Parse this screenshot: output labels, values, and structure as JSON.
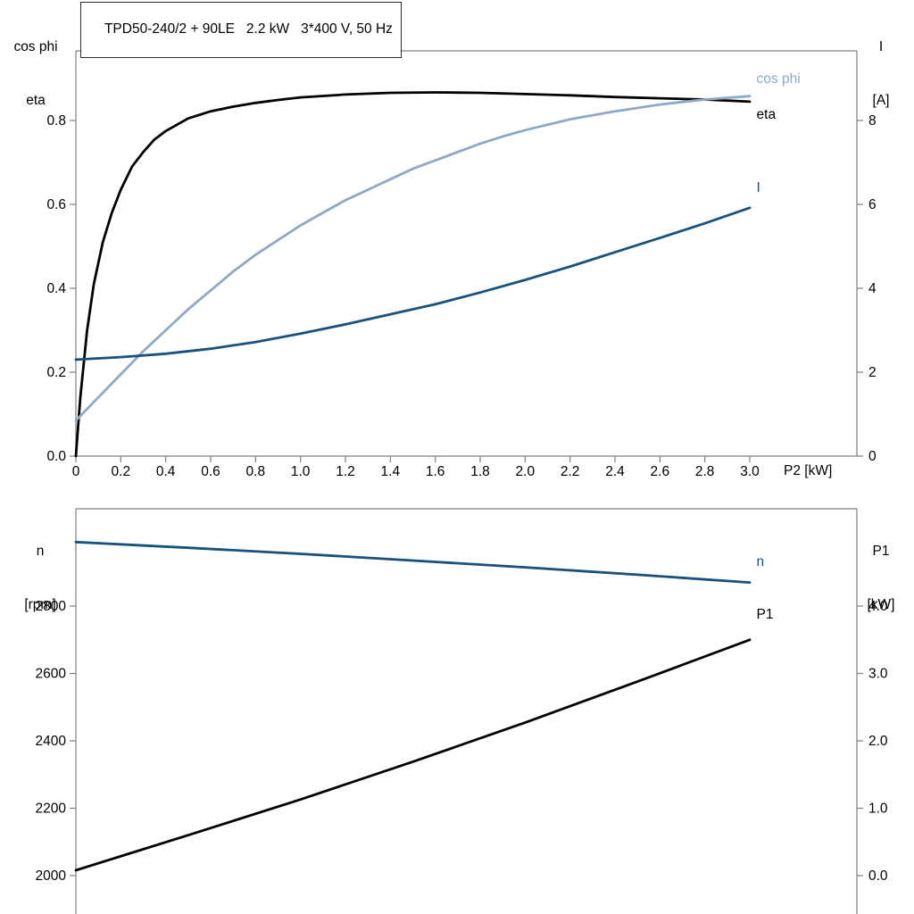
{
  "colors": {
    "axis_frame": "#7f7f7f",
    "text": "#000000",
    "black_curve": "#000000",
    "light_blue_curve": "#8ea9c6",
    "dark_blue_curve": "#17517e"
  },
  "chart_data": [
    {
      "type": "line",
      "title": "TPD50-240/2 + 90LE   2.2 kW   3*400 V, 50 Hz",
      "grid": false,
      "legend_position": "curve-end-labels",
      "x_axis": {
        "label": "P2 [kW]",
        "min": 0,
        "max": 3,
        "ticks": [
          {
            "v": 0,
            "label": "0"
          },
          {
            "v": 0.2,
            "label": "0.2"
          },
          {
            "v": 0.4,
            "label": "0.4"
          },
          {
            "v": 0.6,
            "label": "0.6"
          },
          {
            "v": 0.8,
            "label": "0.8"
          },
          {
            "v": 1.0,
            "label": "1.0"
          },
          {
            "v": 1.2,
            "label": "1.2"
          },
          {
            "v": 1.4,
            "label": "1.4"
          },
          {
            "v": 1.6,
            "label": "1.6"
          },
          {
            "v": 1.8,
            "label": "1.8"
          },
          {
            "v": 2.0,
            "label": "2.0"
          },
          {
            "v": 2.2,
            "label": "2.2"
          },
          {
            "v": 2.4,
            "label": "2.4"
          },
          {
            "v": 2.6,
            "label": "2.6"
          },
          {
            "v": 2.8,
            "label": "2.8"
          },
          {
            "v": 3.0,
            "label": "3.0"
          }
        ]
      },
      "y_left": {
        "title_lines": [
          "cos phi",
          "eta"
        ],
        "min": 0,
        "max": 0.8,
        "ticks": [
          {
            "v": 0.0,
            "label": "0.0"
          },
          {
            "v": 0.2,
            "label": "0.2"
          },
          {
            "v": 0.4,
            "label": "0.4"
          },
          {
            "v": 0.6,
            "label": "0.6"
          },
          {
            "v": 0.8,
            "label": "0.8"
          }
        ]
      },
      "y_right": {
        "title_lines": [
          "I",
          "[A]"
        ],
        "min": 0,
        "max": 8,
        "ticks": [
          {
            "v": 0,
            "label": "0"
          },
          {
            "v": 2,
            "label": "2"
          },
          {
            "v": 4,
            "label": "4"
          },
          {
            "v": 6,
            "label": "6"
          },
          {
            "v": 8,
            "label": "8"
          }
        ]
      },
      "series": [
        {
          "id": "eta",
          "label": "eta",
          "axis": "left",
          "color": "#000000",
          "label_x": 3.03,
          "label_y": 0.815,
          "x": [
            0,
            0.02,
            0.05,
            0.08,
            0.12,
            0.16,
            0.2,
            0.25,
            0.3,
            0.35,
            0.4,
            0.5,
            0.6,
            0.7,
            0.8,
            0.9,
            1.0,
            1.2,
            1.4,
            1.6,
            1.8,
            2.0,
            2.2,
            2.4,
            2.6,
            2.8,
            3.0
          ],
          "y": [
            0,
            0.14,
            0.3,
            0.41,
            0.51,
            0.58,
            0.635,
            0.69,
            0.725,
            0.755,
            0.775,
            0.805,
            0.822,
            0.833,
            0.842,
            0.849,
            0.855,
            0.862,
            0.866,
            0.867,
            0.866,
            0.863,
            0.86,
            0.856,
            0.853,
            0.85,
            0.845
          ]
        },
        {
          "id": "cos-phi",
          "label": "cos phi",
          "axis": "left",
          "color": "#8ea9c6",
          "label_x": 3.03,
          "label_y": 0.9,
          "x": [
            0,
            0.1,
            0.2,
            0.3,
            0.4,
            0.5,
            0.6,
            0.7,
            0.8,
            0.9,
            1.0,
            1.1,
            1.2,
            1.3,
            1.4,
            1.5,
            1.6,
            1.7,
            1.8,
            1.9,
            2.0,
            2.2,
            2.4,
            2.6,
            2.8,
            3.0
          ],
          "y": [
            0.085,
            0.14,
            0.195,
            0.25,
            0.3,
            0.35,
            0.395,
            0.44,
            0.48,
            0.515,
            0.55,
            0.58,
            0.61,
            0.635,
            0.66,
            0.685,
            0.705,
            0.725,
            0.745,
            0.762,
            0.777,
            0.803,
            0.822,
            0.838,
            0.85,
            0.858
          ]
        },
        {
          "id": "current",
          "label": "I",
          "axis": "right",
          "color": "#17517e",
          "label_x": 3.03,
          "label_y": 6.4,
          "x": [
            0,
            0.2,
            0.4,
            0.6,
            0.8,
            1.0,
            1.2,
            1.4,
            1.6,
            1.8,
            2.0,
            2.2,
            2.4,
            2.6,
            2.8,
            3.0
          ],
          "y": [
            2.3,
            2.36,
            2.44,
            2.56,
            2.72,
            2.92,
            3.14,
            3.38,
            3.62,
            3.9,
            4.2,
            4.52,
            4.86,
            5.2,
            5.55,
            5.92
          ]
        }
      ]
    },
    {
      "type": "line",
      "title": "",
      "grid": false,
      "legend_position": "curve-end-labels",
      "x_axis": {
        "label": "",
        "min": 0,
        "max": 3,
        "ticks": []
      },
      "y_left": {
        "title_lines": [
          "n",
          "[rpm]"
        ],
        "min": 2000,
        "max": 2800,
        "ticks": [
          {
            "v": 2000,
            "label": "2000"
          },
          {
            "v": 2200,
            "label": "2200"
          },
          {
            "v": 2400,
            "label": "2400"
          },
          {
            "v": 2600,
            "label": "2600"
          },
          {
            "v": 2800,
            "label": "2800"
          }
        ]
      },
      "y_right": {
        "title_lines": [
          "P1",
          "[kW]"
        ],
        "min": 0,
        "max": 4,
        "ticks": [
          {
            "v": 0.0,
            "label": "0.0"
          },
          {
            "v": 1.0,
            "label": "1.0"
          },
          {
            "v": 2.0,
            "label": "2.0"
          },
          {
            "v": 3.0,
            "label": "3.0"
          },
          {
            "v": 4.0,
            "label": "4.0"
          }
        ]
      },
      "series": [
        {
          "id": "speed",
          "label": "n",
          "axis": "left",
          "color": "#17517e",
          "label_x": 3.03,
          "label_y": 2932,
          "x": [
            0,
            0.5,
            1.0,
            1.5,
            2.0,
            2.5,
            3.0
          ],
          "y": [
            2990,
            2973,
            2955,
            2935,
            2915,
            2893,
            2870
          ]
        },
        {
          "id": "p1",
          "label": "P1",
          "axis": "right",
          "color": "#000000",
          "label_x": 3.03,
          "label_y": 3.88,
          "x": [
            0,
            0.5,
            1.0,
            1.5,
            2.0,
            2.5,
            3.0
          ],
          "y": [
            0.08,
            0.6,
            1.13,
            1.69,
            2.27,
            2.88,
            3.5
          ]
        }
      ]
    }
  ]
}
